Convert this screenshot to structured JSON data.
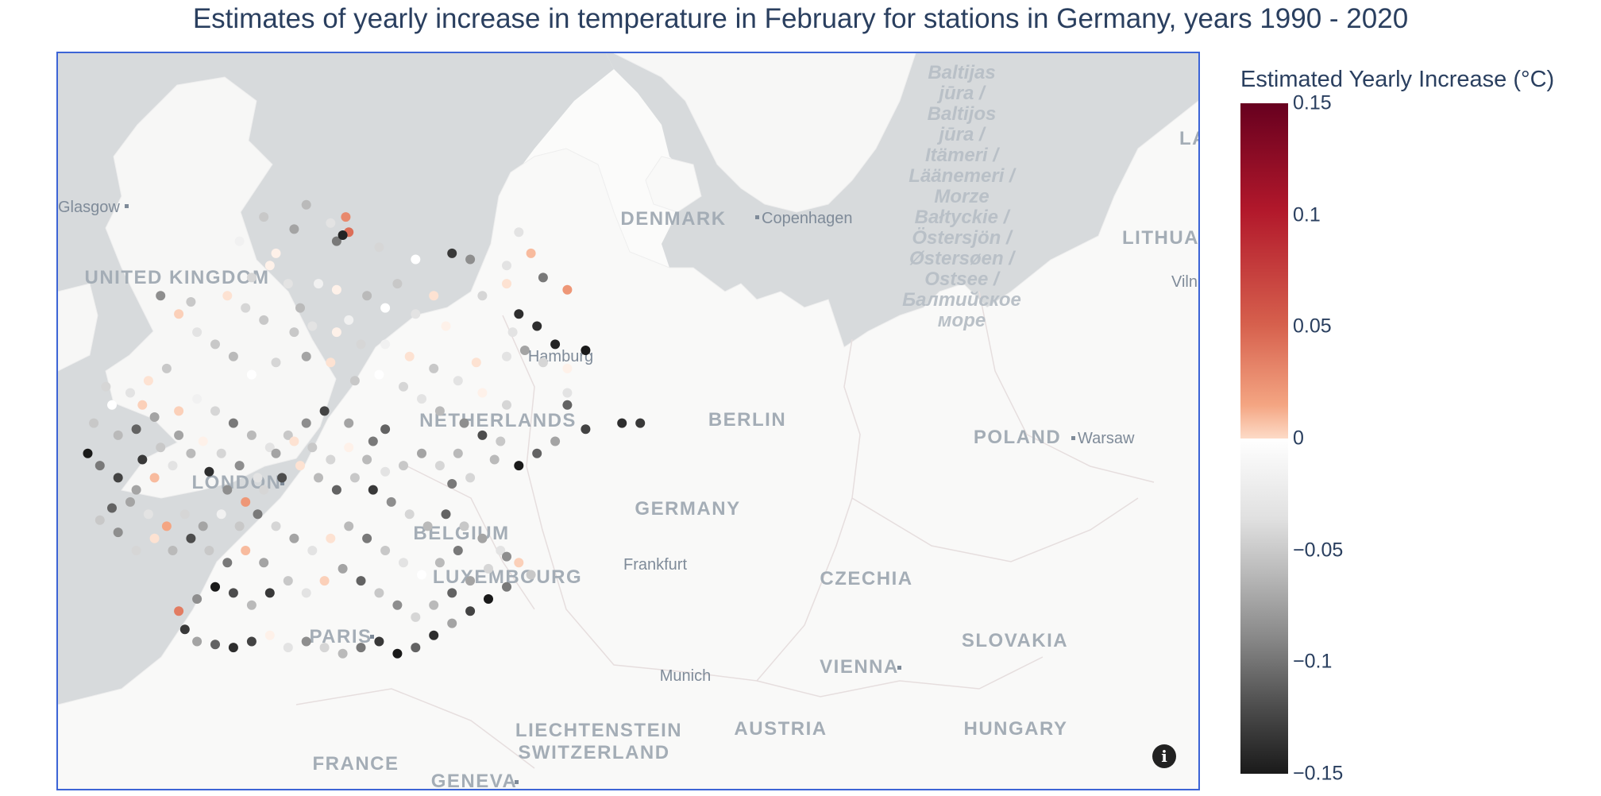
{
  "title": "Estimates of yearly increase in temperature in February for stations in Germany, years 1990 - 2020",
  "colorbar": {
    "title": "Estimated Yearly Increase (°C)",
    "ticks": [
      {
        "label": "0.15",
        "value": 0.15
      },
      {
        "label": "0.1",
        "value": 0.1
      },
      {
        "label": "0.05",
        "value": 0.05
      },
      {
        "label": "0",
        "value": 0
      },
      {
        "label": "−0.05",
        "value": -0.05
      },
      {
        "label": "−0.1",
        "value": -0.1
      },
      {
        "label": "−0.15",
        "value": -0.15
      }
    ],
    "min": -0.15,
    "max": 0.15
  },
  "map": {
    "countries": [
      "UNITED KINGDOM",
      "DENMARK",
      "NETHERLANDS",
      "BELGIUM",
      "LUXEMBOURG",
      "GERMANY",
      "POLAND",
      "CZECHIA",
      "SLOVAKIA",
      "AUSTRIA",
      "HUNGARY",
      "SWITZERLAND",
      "LIECHTENSTEIN",
      "FRANCE",
      "LITHUAN",
      "LA"
    ],
    "cities": [
      "Glasgow",
      "Copenhagen",
      "Hamburg",
      "BERLIN",
      "LONDON",
      "Warsaw",
      "Frankfurt",
      "PARIS",
      "VIENNA",
      "Munich",
      "GENEVA",
      "Viln"
    ],
    "sea_label": [
      "Baltijas",
      "jūra /",
      "Baltijos",
      "jūra /",
      "Itämeri /",
      "Läänemeri /",
      "Morze",
      "Bałtyckie /",
      "Östersjön /",
      "Østersøen /",
      "Ostsee /",
      "Балтийское",
      "море"
    ]
  },
  "stations": [
    [
      9.7,
      54.9,
      -0.05
    ],
    [
      10.1,
      54.6,
      -0.02
    ],
    [
      10.2,
      54.3,
      -0.08
    ],
    [
      10.35,
      54.7,
      0.07
    ],
    [
      10.4,
      54.45,
      0.09
    ],
    [
      10.3,
      54.4,
      -0.14
    ],
    [
      9.5,
      54.5,
      -0.06
    ],
    [
      9.0,
      54.7,
      -0.04
    ],
    [
      8.6,
      54.3,
      -0.01
    ],
    [
      9.2,
      54.1,
      0.01
    ],
    [
      10.9,
      54.2,
      -0.03
    ],
    [
      11.5,
      54.0,
      0.0
    ],
    [
      12.1,
      54.1,
      -0.12
    ],
    [
      12.4,
      54.0,
      -0.07
    ],
    [
      13.2,
      54.45,
      -0.02
    ],
    [
      13.4,
      54.1,
      0.04
    ],
    [
      13.0,
      53.9,
      -0.02
    ],
    [
      13.6,
      53.7,
      -0.08
    ],
    [
      13.0,
      53.6,
      0.02
    ],
    [
      14.0,
      53.5,
      0.06
    ],
    [
      13.2,
      53.1,
      -0.13
    ],
    [
      13.5,
      52.9,
      -0.13
    ],
    [
      13.8,
      52.6,
      -0.14
    ],
    [
      14.3,
      52.5,
      -0.15
    ],
    [
      13.3,
      52.5,
      -0.06
    ],
    [
      13.0,
      52.4,
      -0.02
    ],
    [
      12.5,
      52.3,
      0.02
    ],
    [
      13.6,
      52.3,
      -0.03
    ],
    [
      14.0,
      52.2,
      0.01
    ],
    [
      14.0,
      51.8,
      -0.02
    ],
    [
      14.0,
      51.6,
      -0.09
    ],
    [
      14.3,
      51.2,
      -0.11
    ],
    [
      14.9,
      51.3,
      -0.13
    ],
    [
      15.2,
      51.3,
      -0.12
    ],
    [
      13.8,
      51.0,
      -0.06
    ],
    [
      13.5,
      50.8,
      -0.09
    ],
    [
      13.2,
      50.6,
      -0.15
    ],
    [
      12.8,
      50.7,
      -0.05
    ],
    [
      12.4,
      50.4,
      -0.03
    ],
    [
      12.1,
      50.3,
      -0.08
    ],
    [
      8.4,
      53.4,
      0.02
    ],
    [
      8.7,
      53.2,
      -0.03
    ],
    [
      9.0,
      53.0,
      -0.04
    ],
    [
      9.4,
      53.6,
      -0.02
    ],
    [
      9.9,
      53.6,
      -0.01
    ],
    [
      10.2,
      53.5,
      0.01
    ],
    [
      10.7,
      53.4,
      -0.05
    ],
    [
      11.0,
      53.2,
      0.0
    ],
    [
      11.5,
      53.1,
      -0.02
    ],
    [
      12.0,
      52.9,
      0.01
    ],
    [
      7.8,
      53.3,
      -0.04
    ],
    [
      7.3,
      53.4,
      -0.07
    ],
    [
      7.6,
      53.1,
      0.03
    ],
    [
      7.9,
      52.8,
      -0.02
    ],
    [
      8.2,
      52.6,
      -0.04
    ],
    [
      8.5,
      52.4,
      -0.05
    ],
    [
      8.8,
      52.1,
      0.0
    ],
    [
      9.2,
      52.3,
      -0.03
    ],
    [
      9.7,
      52.4,
      -0.06
    ],
    [
      10.1,
      52.3,
      0.02
    ],
    [
      10.5,
      52.0,
      -0.04
    ],
    [
      10.9,
      52.1,
      0.0
    ],
    [
      11.3,
      51.9,
      -0.03
    ],
    [
      11.6,
      51.7,
      -0.02
    ],
    [
      11.9,
      51.5,
      -0.05
    ],
    [
      12.3,
      51.3,
      -0.07
    ],
    [
      12.6,
      51.1,
      -0.1
    ],
    [
      12.9,
      51.0,
      -0.04
    ],
    [
      11.0,
      51.2,
      -0.09
    ],
    [
      10.8,
      51.0,
      -0.08
    ],
    [
      10.4,
      51.3,
      -0.06
    ],
    [
      10.0,
      51.5,
      -0.11
    ],
    [
      9.7,
      51.3,
      -0.07
    ],
    [
      9.4,
      51.1,
      -0.04
    ],
    [
      9.1,
      50.9,
      -0.02
    ],
    [
      8.8,
      51.1,
      -0.05
    ],
    [
      8.5,
      51.3,
      -0.08
    ],
    [
      8.2,
      51.5,
      -0.03
    ],
    [
      7.9,
      51.7,
      -0.01
    ],
    [
      7.6,
      51.5,
      0.03
    ],
    [
      7.2,
      51.4,
      -0.06
    ],
    [
      6.9,
      51.2,
      -0.09
    ],
    [
      6.6,
      51.1,
      -0.05
    ],
    [
      6.2,
      51.3,
      -0.04
    ],
    [
      6.5,
      51.6,
      0.0
    ],
    [
      6.8,
      51.8,
      -0.02
    ],
    [
      7.1,
      52.0,
      0.02
    ],
    [
      7.4,
      52.2,
      -0.04
    ],
    [
      6.1,
      50.8,
      -0.15
    ],
    [
      6.3,
      50.6,
      -0.08
    ],
    [
      6.6,
      50.4,
      -0.11
    ],
    [
      6.9,
      50.2,
      -0.06
    ],
    [
      7.2,
      50.4,
      0.04
    ],
    [
      7.5,
      50.6,
      -0.02
    ],
    [
      7.8,
      50.8,
      -0.05
    ],
    [
      8.1,
      50.5,
      -0.13
    ],
    [
      8.4,
      50.2,
      -0.07
    ],
    [
      8.7,
      50.0,
      0.06
    ],
    [
      9.0,
      50.2,
      -0.03
    ],
    [
      9.3,
      50.4,
      -0.1
    ],
    [
      9.6,
      50.6,
      0.02
    ],
    [
      9.9,
      50.4,
      -0.05
    ],
    [
      10.2,
      50.2,
      -0.09
    ],
    [
      10.5,
      50.4,
      -0.04
    ],
    [
      10.8,
      50.2,
      -0.12
    ],
    [
      11.1,
      50.0,
      -0.07
    ],
    [
      11.4,
      49.8,
      -0.03
    ],
    [
      11.7,
      49.6,
      -0.05
    ],
    [
      12.0,
      49.8,
      -0.09
    ],
    [
      12.3,
      49.6,
      -0.04
    ],
    [
      12.6,
      49.4,
      -0.06
    ],
    [
      12.9,
      49.2,
      -0.02
    ],
    [
      13.2,
      49.0,
      0.03
    ],
    [
      13.4,
      48.8,
      -0.04
    ],
    [
      13.0,
      48.6,
      -0.08
    ],
    [
      12.7,
      48.4,
      -0.15
    ],
    [
      12.4,
      48.2,
      -0.11
    ],
    [
      12.1,
      48.0,
      -0.06
    ],
    [
      11.8,
      47.8,
      -0.13
    ],
    [
      11.5,
      47.6,
      -0.09
    ],
    [
      11.2,
      47.5,
      -0.15
    ],
    [
      10.9,
      47.7,
      -0.12
    ],
    [
      10.6,
      47.6,
      -0.08
    ],
    [
      10.3,
      47.5,
      -0.05
    ],
    [
      10.0,
      47.6,
      -0.03
    ],
    [
      9.7,
      47.7,
      -0.07
    ],
    [
      9.4,
      47.6,
      -0.02
    ],
    [
      9.1,
      47.8,
      0.01
    ],
    [
      8.8,
      47.7,
      -0.11
    ],
    [
      8.5,
      47.6,
      -0.13
    ],
    [
      8.2,
      47.65,
      -0.09
    ],
    [
      7.9,
      47.7,
      -0.06
    ],
    [
      7.7,
      47.9,
      -0.12
    ],
    [
      7.6,
      48.2,
      0.08
    ],
    [
      7.9,
      48.4,
      -0.07
    ],
    [
      8.2,
      48.6,
      -0.15
    ],
    [
      8.5,
      48.5,
      -0.1
    ],
    [
      8.8,
      48.3,
      -0.05
    ],
    [
      9.1,
      48.5,
      -0.12
    ],
    [
      9.4,
      48.7,
      -0.04
    ],
    [
      9.7,
      48.5,
      -0.02
    ],
    [
      10.0,
      48.7,
      0.03
    ],
    [
      10.3,
      48.9,
      -0.06
    ],
    [
      10.6,
      48.7,
      -0.09
    ],
    [
      10.9,
      48.5,
      -0.04
    ],
    [
      11.2,
      48.3,
      -0.07
    ],
    [
      11.5,
      48.1,
      -0.03
    ],
    [
      11.8,
      48.3,
      -0.05
    ],
    [
      12.1,
      48.5,
      -0.09
    ],
    [
      12.4,
      48.7,
      -0.06
    ],
    [
      12.7,
      48.9,
      -0.03
    ],
    [
      13.0,
      49.1,
      -0.07
    ],
    [
      9.0,
      49.0,
      -0.06
    ],
    [
      8.7,
      49.2,
      0.04
    ],
    [
      8.4,
      49.0,
      -0.08
    ],
    [
      8.1,
      49.2,
      -0.04
    ],
    [
      7.8,
      49.4,
      -0.1
    ],
    [
      7.5,
      49.2,
      -0.05
    ],
    [
      7.2,
      49.4,
      0.02
    ],
    [
      6.9,
      49.2,
      -0.03
    ],
    [
      6.6,
      49.5,
      -0.07
    ],
    [
      6.3,
      49.7,
      -0.04
    ],
    [
      6.5,
      49.9,
      -0.09
    ],
    [
      6.8,
      50.0,
      -0.06
    ],
    [
      7.1,
      49.8,
      -0.02
    ],
    [
      7.4,
      49.6,
      0.05
    ],
    [
      7.7,
      49.8,
      -0.03
    ],
    [
      8.0,
      49.6,
      -0.06
    ],
    [
      8.3,
      49.8,
      -0.01
    ],
    [
      8.6,
      49.6,
      -0.04
    ],
    [
      8.9,
      49.8,
      -0.08
    ],
    [
      9.2,
      49.6,
      -0.03
    ],
    [
      9.5,
      49.4,
      -0.06
    ],
    [
      9.8,
      49.2,
      -0.02
    ],
    [
      10.1,
      49.4,
      0.02
    ],
    [
      10.4,
      49.6,
      -0.05
    ],
    [
      10.7,
      49.4,
      -0.08
    ],
    [
      11.0,
      49.2,
      -0.04
    ],
    [
      11.3,
      49.0,
      -0.02
    ],
    [
      11.6,
      48.8,
      0.0
    ],
    [
      11.9,
      49.0,
      -0.05
    ],
    [
      12.2,
      49.2,
      -0.08
    ],
    [
      9.5,
      52.8,
      -0.04
    ],
    [
      9.8,
      52.9,
      -0.02
    ],
    [
      10.2,
      52.8,
      0.01
    ],
    [
      10.6,
      52.6,
      -0.03
    ],
    [
      11.0,
      52.6,
      -0.01
    ],
    [
      11.4,
      52.4,
      0.02
    ],
    [
      11.8,
      52.2,
      -0.04
    ],
    [
      12.2,
      52.0,
      -0.02
    ],
    [
      12.6,
      51.8,
      0.01
    ],
    [
      13.0,
      51.6,
      -0.03
    ],
    [
      8.8,
      53.7,
      -0.03
    ],
    [
      9.1,
      53.9,
      0.01
    ],
    [
      9.6,
      53.2,
      -0.05
    ],
    [
      10.4,
      53.0,
      -0.01
    ],
    [
      11.2,
      53.6,
      -0.04
    ],
    [
      11.8,
      53.4,
      0.02
    ],
    [
      12.6,
      53.4,
      -0.03
    ],
    [
      13.1,
      52.8,
      -0.02
    ],
    [
      7.0,
      50.7,
      -0.12
    ],
    [
      7.3,
      50.9,
      -0.04
    ],
    [
      7.6,
      51.1,
      -0.06
    ],
    [
      8.0,
      51.0,
      0.01
    ],
    [
      8.3,
      50.8,
      -0.03
    ],
    [
      8.6,
      50.6,
      -0.07
    ],
    [
      8.9,
      50.4,
      -0.02
    ],
    [
      9.2,
      50.8,
      -0.06
    ],
    [
      9.5,
      51.0,
      0.02
    ],
    [
      9.8,
      50.9,
      -0.04
    ],
    [
      10.1,
      50.7,
      -0.03
    ],
    [
      10.4,
      50.9,
      0.01
    ],
    [
      10.7,
      50.7,
      -0.05
    ],
    [
      11.0,
      50.5,
      -0.02
    ],
    [
      11.3,
      50.6,
      -0.04
    ],
    [
      11.6,
      50.8,
      -0.06
    ],
    [
      11.9,
      50.6,
      -0.03
    ],
    [
      12.2,
      50.8,
      -0.05
    ],
    [
      6.4,
      51.9,
      -0.03
    ],
    [
      7.0,
      51.6,
      0.03
    ]
  ]
}
